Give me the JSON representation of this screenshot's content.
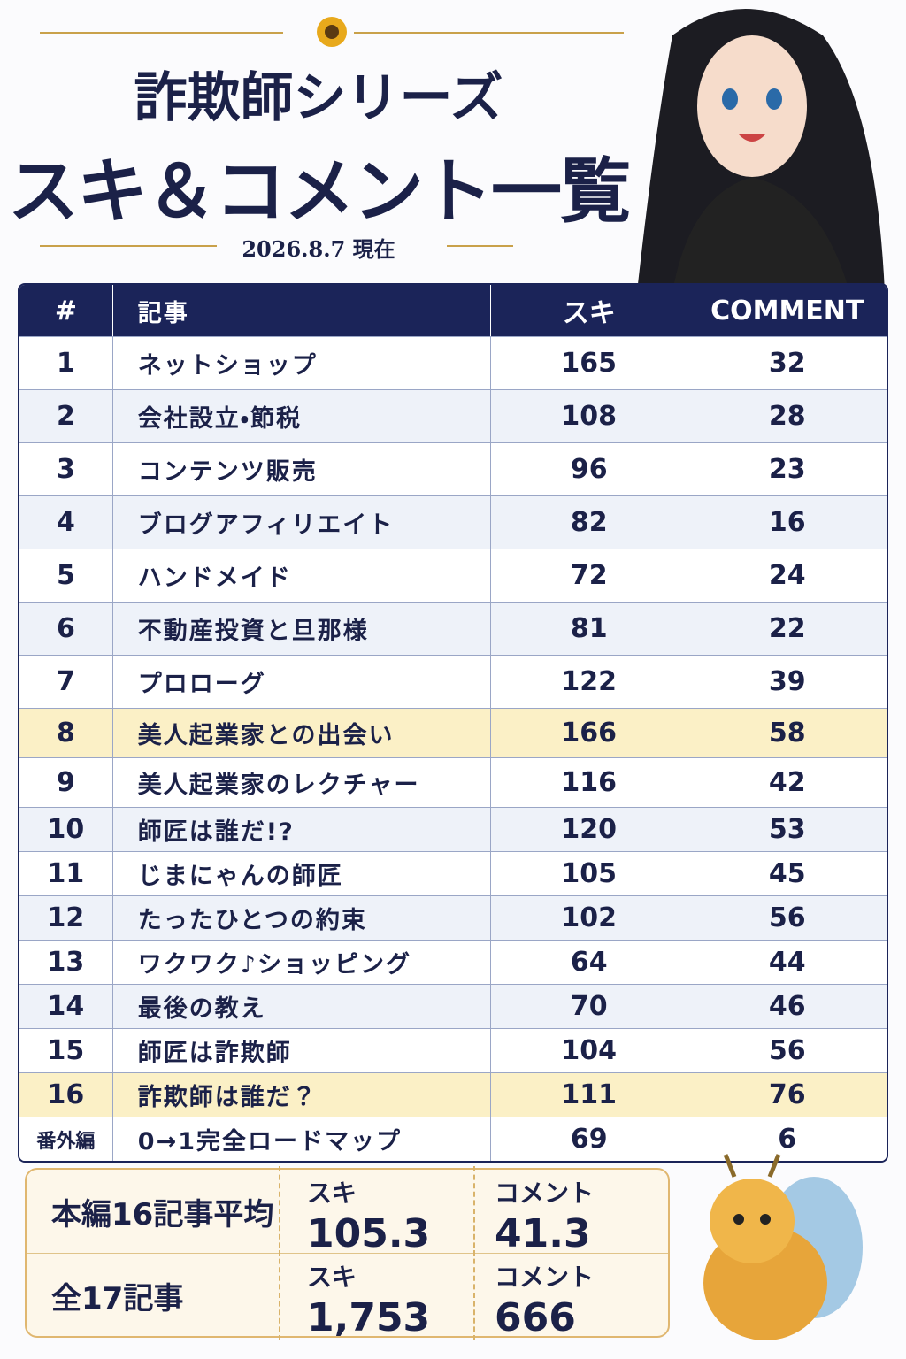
{
  "header": {
    "title": "詐欺師シリーズ",
    "subtitle": "スキ＆コメント一覧",
    "date": "2026.8.7 現在"
  },
  "table": {
    "columns": [
      "#",
      "記事",
      "スキ",
      "COMMENT"
    ],
    "rows": [
      [
        1,
        "ネットショップ",
        165,
        32
      ],
      [
        2,
        "会社設立・節税",
        108,
        28
      ],
      [
        3,
        "コンテンツ販売",
        96,
        23
      ],
      [
        4,
        "ブログアフィリエイト",
        82,
        16
      ],
      [
        5,
        "ハンドメイド",
        72,
        24
      ],
      [
        6,
        "不動産投資と旦那様",
        81,
        22
      ],
      [
        7,
        "プロローグ",
        122,
        39
      ],
      [
        8,
        "美人起業家との出会い",
        166,
        58
      ],
      [
        9,
        "美人起業家のレクチャー",
        116,
        42
      ],
      [
        10,
        "師匠は誰だ!?",
        120,
        53
      ],
      [
        11,
        "じまにゃんの師匠",
        105,
        45
      ],
      [
        12,
        "たったひとつの約束",
        102,
        56
      ],
      [
        13,
        "ワクワク♪ショッピング",
        64,
        44
      ],
      [
        14,
        "最後の教え",
        70,
        46
      ],
      [
        15,
        "師匠は詐欺師",
        104,
        56
      ],
      [
        16,
        "詐欺師は誰だ？",
        111,
        76
      ],
      [
        "番外編",
        "0→1完全ロードマップ",
        69,
        6
      ]
    ]
  },
  "summary": [
    {
      "label": "本編16記事平均",
      "suki_label": "スキ",
      "suki": 105.3,
      "comment_label": "コメント",
      "comment": 41.3
    },
    {
      "label": "全17記事",
      "suki_label": "スキ",
      "suki": "1,753",
      "comment_label": "コメント",
      "comment": 666
    }
  ]
}
